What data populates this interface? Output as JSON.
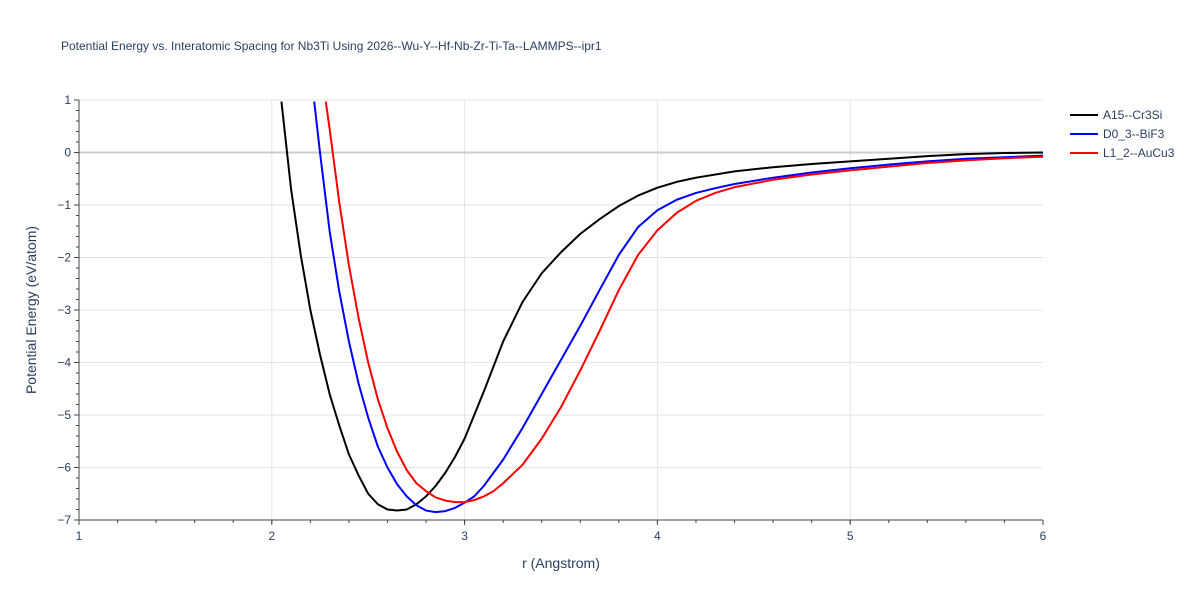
{
  "chart_data": {
    "type": "line",
    "title": "Potential Energy vs. Interatomic Spacing for Nb3Ti Using 2026--Wu-Y--Hf-Nb-Zr-Ti-Ta--LAMMPS--ipr1",
    "xlabel": "r (Angstrom)",
    "ylabel": "Potential Energy (eV/atom)",
    "xlim": [
      1,
      6
    ],
    "ylim": [
      -7,
      1
    ],
    "x_ticks": [
      "1",
      "2",
      "3",
      "4",
      "5",
      "6"
    ],
    "y_ticks": [
      "1",
      "0",
      "−1",
      "−2",
      "−3",
      "−4",
      "−5",
      "−6",
      "−7"
    ],
    "grid": true,
    "legend_position": "top-right",
    "series": [
      {
        "name": "A15--Cr3Si",
        "color": "#000000",
        "x": [
          2.05,
          2.1,
          2.15,
          2.2,
          2.25,
          2.3,
          2.35,
          2.4,
          2.45,
          2.5,
          2.55,
          2.6,
          2.65,
          2.7,
          2.75,
          2.8,
          2.85,
          2.9,
          2.95,
          3.0,
          3.1,
          3.2,
          3.3,
          3.4,
          3.5,
          3.6,
          3.7,
          3.8,
          3.9,
          4.0,
          4.1,
          4.2,
          4.4,
          4.6,
          4.8,
          5.0,
          5.2,
          5.4,
          5.6,
          5.8,
          6.0
        ],
        "y": [
          0.97,
          -0.7,
          -1.95,
          -3.0,
          -3.85,
          -4.6,
          -5.2,
          -5.75,
          -6.15,
          -6.5,
          -6.7,
          -6.8,
          -6.82,
          -6.8,
          -6.7,
          -6.55,
          -6.35,
          -6.1,
          -5.8,
          -5.45,
          -4.55,
          -3.6,
          -2.85,
          -2.3,
          -1.9,
          -1.55,
          -1.27,
          -1.02,
          -0.82,
          -0.67,
          -0.56,
          -0.48,
          -0.36,
          -0.28,
          -0.22,
          -0.17,
          -0.12,
          -0.07,
          -0.03,
          -0.01,
          0.0
        ]
      },
      {
        "name": "D0_3--BiF3",
        "color": "#0000ff",
        "x": [
          2.22,
          2.25,
          2.3,
          2.35,
          2.4,
          2.45,
          2.5,
          2.55,
          2.6,
          2.65,
          2.7,
          2.75,
          2.8,
          2.85,
          2.9,
          2.95,
          3.0,
          3.05,
          3.1,
          3.2,
          3.3,
          3.4,
          3.5,
          3.6,
          3.7,
          3.8,
          3.9,
          4.0,
          4.1,
          4.2,
          4.3,
          4.4,
          4.6,
          4.8,
          5.0,
          5.2,
          5.4,
          5.6,
          5.8,
          6.0
        ],
        "y": [
          0.97,
          0.0,
          -1.5,
          -2.65,
          -3.6,
          -4.4,
          -5.05,
          -5.6,
          -6.0,
          -6.32,
          -6.55,
          -6.72,
          -6.82,
          -6.85,
          -6.83,
          -6.77,
          -6.67,
          -6.55,
          -6.35,
          -5.85,
          -5.25,
          -4.6,
          -3.95,
          -3.3,
          -2.62,
          -1.95,
          -1.42,
          -1.1,
          -0.9,
          -0.77,
          -0.68,
          -0.6,
          -0.48,
          -0.38,
          -0.3,
          -0.23,
          -0.17,
          -0.12,
          -0.09,
          -0.06
        ]
      },
      {
        "name": "L1_2--AuCu3",
        "color": "#ff0000",
        "x": [
          2.28,
          2.3,
          2.35,
          2.4,
          2.45,
          2.5,
          2.55,
          2.6,
          2.65,
          2.7,
          2.75,
          2.8,
          2.85,
          2.9,
          2.95,
          3.0,
          3.05,
          3.1,
          3.15,
          3.2,
          3.3,
          3.4,
          3.5,
          3.6,
          3.7,
          3.8,
          3.9,
          4.0,
          4.1,
          4.2,
          4.3,
          4.4,
          4.6,
          4.8,
          5.0,
          5.2,
          5.4,
          5.6,
          5.8,
          6.0
        ],
        "y": [
          0.97,
          0.45,
          -0.95,
          -2.15,
          -3.15,
          -4.0,
          -4.7,
          -5.25,
          -5.7,
          -6.05,
          -6.3,
          -6.45,
          -6.57,
          -6.63,
          -6.66,
          -6.66,
          -6.62,
          -6.55,
          -6.45,
          -6.3,
          -5.95,
          -5.45,
          -4.85,
          -4.15,
          -3.4,
          -2.62,
          -1.95,
          -1.48,
          -1.15,
          -0.92,
          -0.77,
          -0.66,
          -0.52,
          -0.42,
          -0.34,
          -0.27,
          -0.2,
          -0.15,
          -0.11,
          -0.08
        ]
      }
    ]
  }
}
